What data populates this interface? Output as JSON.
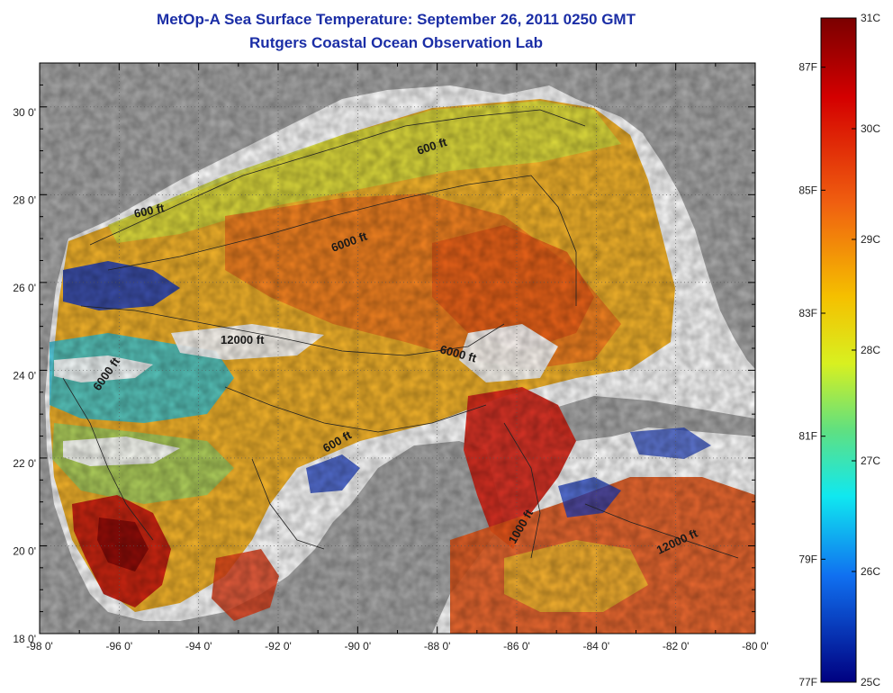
{
  "title": {
    "line1": "MetOp-A Sea Surface Temperature:  September 26, 2011 0250 GMT",
    "line2": "Rutgers Coastal Ocean Observation Lab"
  },
  "map": {
    "lon_labels": [
      "-98 0'",
      "-96 0'",
      "-94 0'",
      "-92 0'",
      "-90 0'",
      "-88 0'",
      "-86 0'",
      "-84 0'",
      "-82 0'",
      "-80 0'"
    ],
    "lat_labels": [
      "30 0'",
      "28 0'",
      "26 0'",
      "24 0'",
      "22 0'",
      "20 0'",
      "18 0'"
    ],
    "contour_labels": [
      {
        "text": "600 ft",
        "id": "c600a"
      },
      {
        "text": "600 ft",
        "id": "c600b"
      },
      {
        "text": "6000 ft",
        "id": "c6000a"
      },
      {
        "text": "12000 ft",
        "id": "c12000a"
      },
      {
        "text": "6000 ft",
        "id": "c6000b"
      },
      {
        "text": "6000 ft",
        "id": "c6000c"
      },
      {
        "text": "600 ft",
        "id": "c600c"
      },
      {
        "text": "1000 ft",
        "id": "c1000"
      },
      {
        "text": "12000 ft",
        "id": "c12000b"
      }
    ],
    "colors": {
      "land": "#a9a9a9",
      "no_data": "#ffffff",
      "warm": "#d8281a",
      "mid": "#f0b400",
      "cool": "#2ec8d8",
      "cold": "#1a2aa8"
    }
  },
  "colorbar": {
    "celsius_labels": [
      "31C",
      "30C",
      "29C",
      "28C",
      "27C",
      "26C",
      "25C"
    ],
    "fahrenheit_labels": [
      "87F",
      "85F",
      "83F",
      "81F",
      "79F",
      "77F"
    ],
    "range_c": [
      25,
      31
    ]
  }
}
